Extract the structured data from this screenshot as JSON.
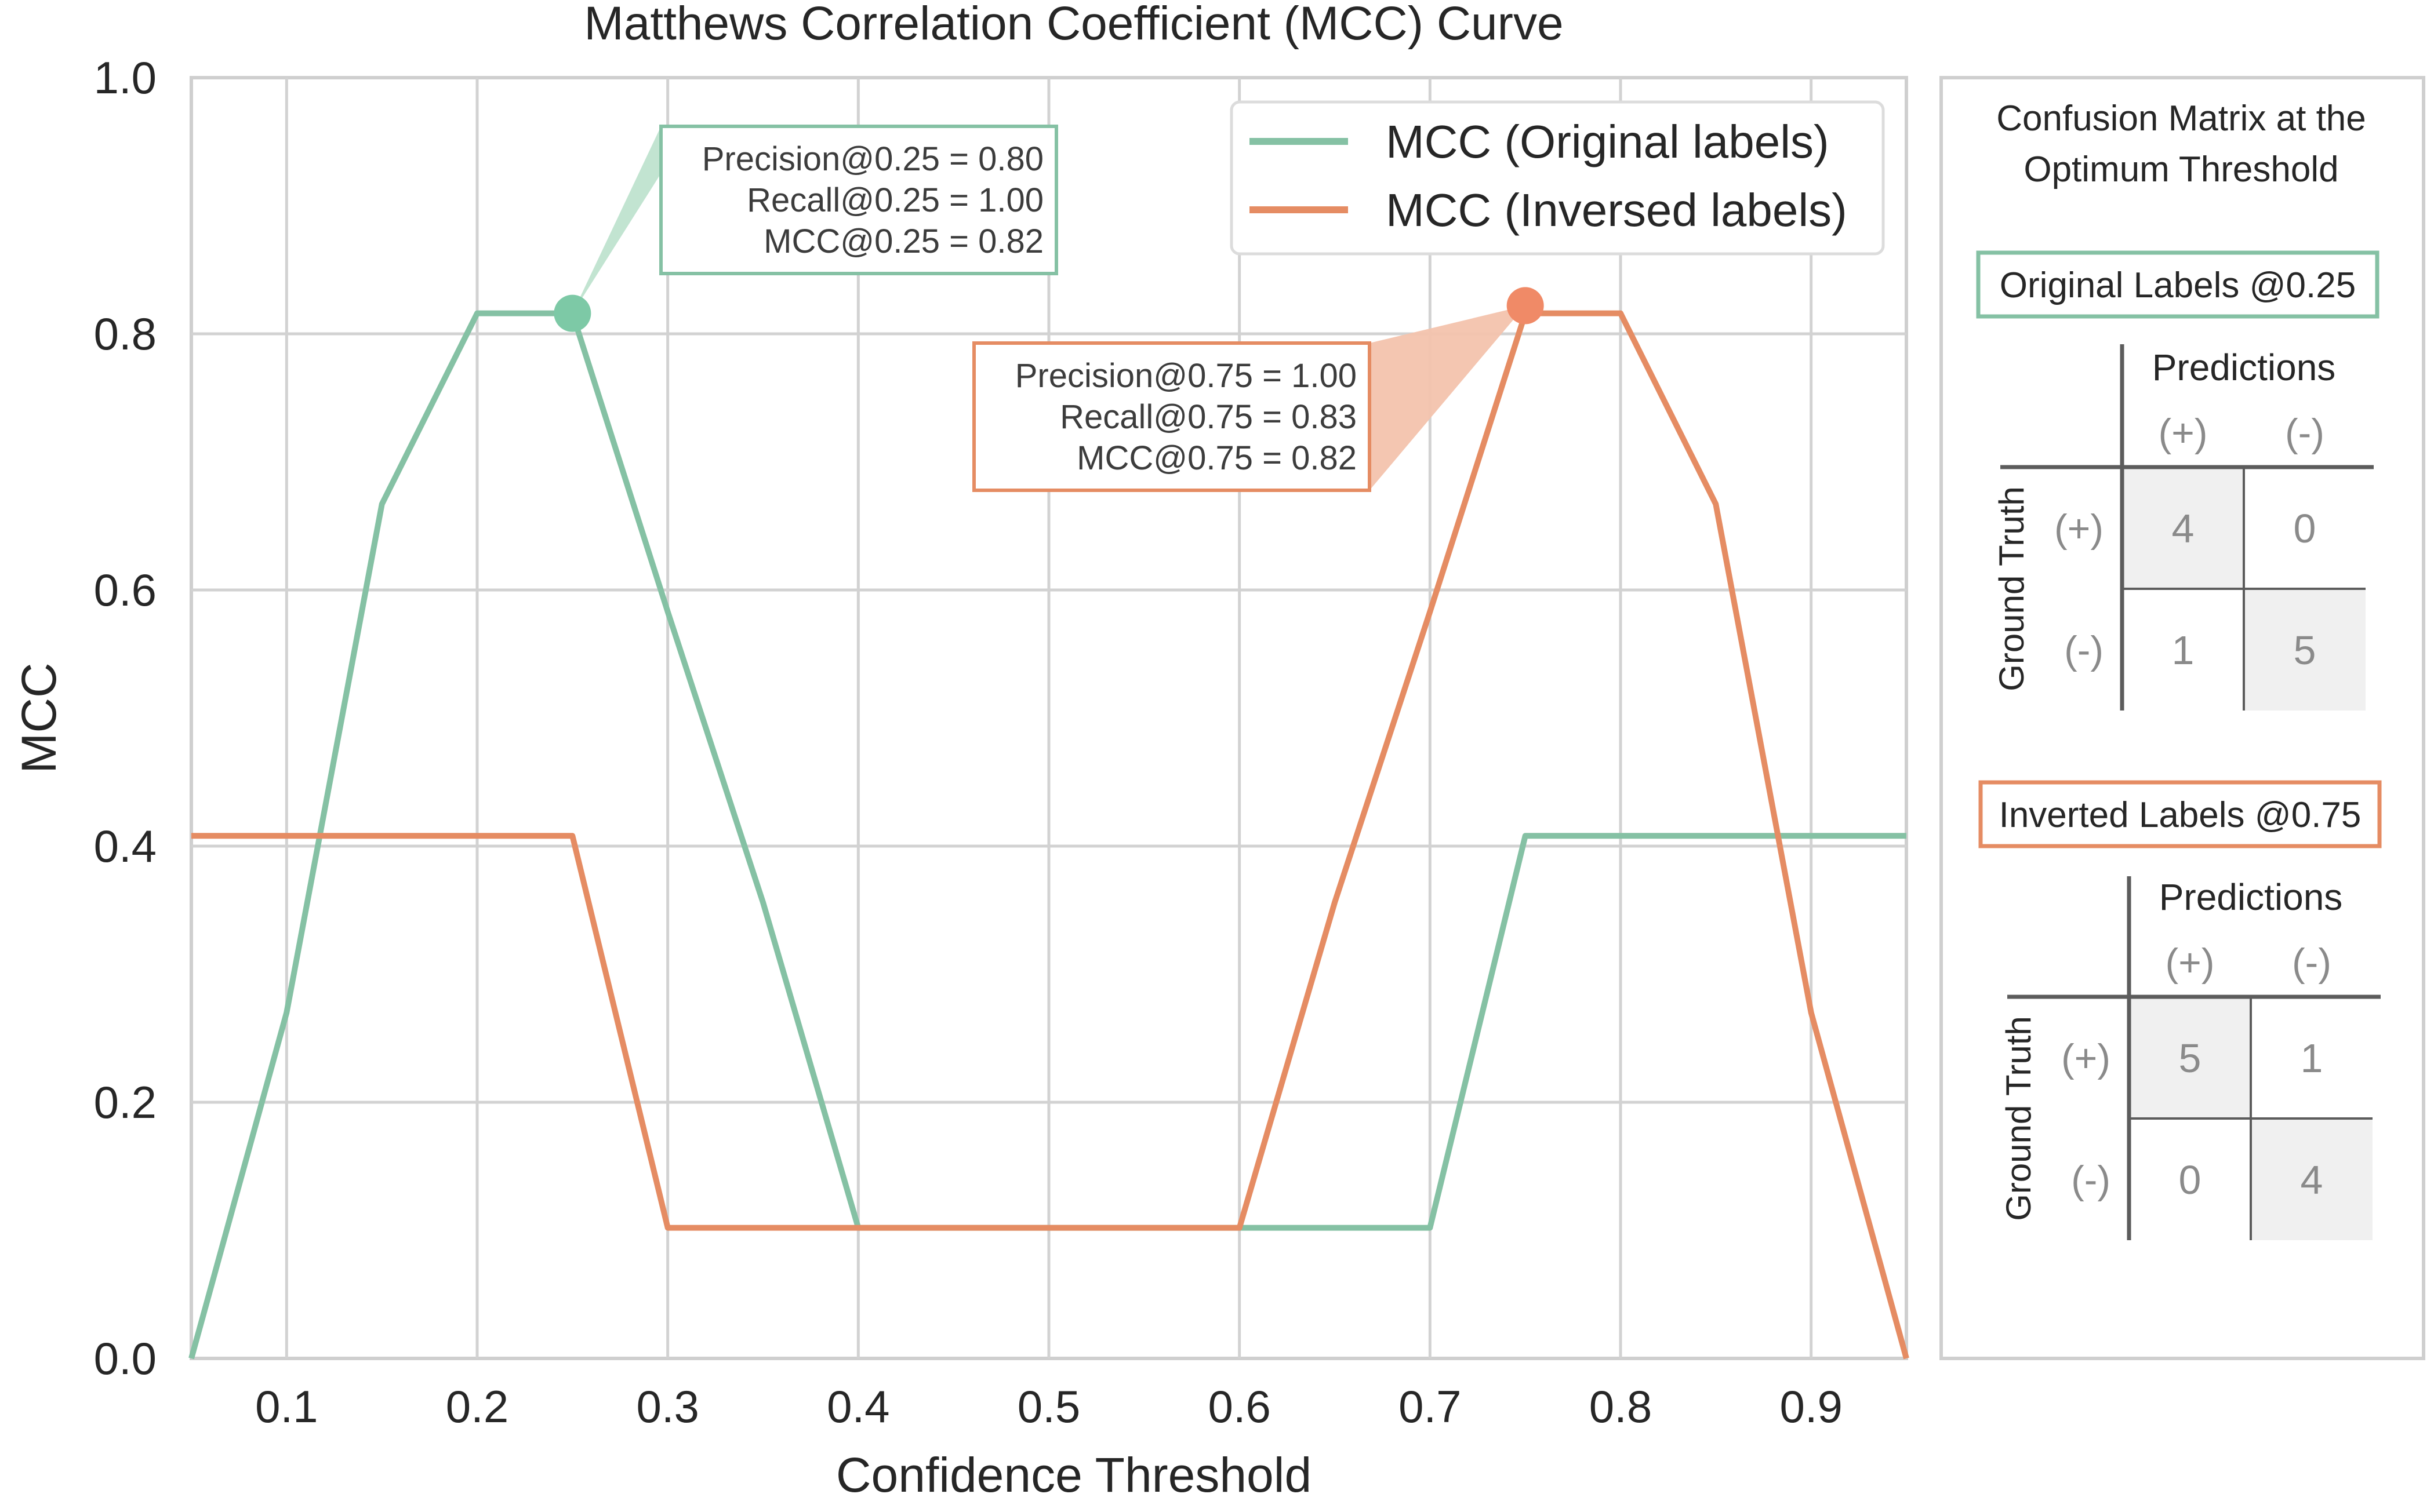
{
  "chart_data": {
    "type": "line",
    "title": "Matthews Correlation Coefficient (MCC) Curve",
    "xlabel": "Confidence Threshold",
    "ylabel": "MCC",
    "xlim": [
      0.05,
      0.95
    ],
    "ylim": [
      0.0,
      1.0
    ],
    "xticks": [
      0.1,
      0.2,
      0.3,
      0.4,
      0.5,
      0.6,
      0.7,
      0.8,
      0.9
    ],
    "xtick_labels": [
      "0.1",
      "0.2",
      "0.3",
      "0.4",
      "0.5",
      "0.6",
      "0.7",
      "0.8",
      "0.9"
    ],
    "yticks": [
      0.0,
      0.2,
      0.4,
      0.6,
      0.8,
      1.0
    ],
    "ytick_labels": [
      "0.0",
      "0.2",
      "0.4",
      "0.6",
      "0.8",
      "1.0"
    ],
    "grid": true,
    "legend_position": "top-right",
    "series": [
      {
        "name": "MCC (Original labels)",
        "color": "#85c1a4",
        "x": [
          0.05,
          0.1,
          0.15,
          0.2,
          0.25,
          0.3,
          0.35,
          0.4,
          0.45,
          0.5,
          0.55,
          0.6,
          0.65,
          0.7,
          0.75,
          0.8,
          0.85,
          0.9,
          0.95
        ],
        "y": [
          0.0,
          0.27,
          0.667,
          0.816,
          0.816,
          0.583,
          0.356,
          0.102,
          0.102,
          0.102,
          0.102,
          0.102,
          0.102,
          0.102,
          0.408,
          0.408,
          0.408,
          0.408,
          0.408
        ]
      },
      {
        "name": "MCC (Inversed labels)",
        "color": "#e58c63",
        "x": [
          0.05,
          0.1,
          0.15,
          0.2,
          0.25,
          0.3,
          0.35,
          0.4,
          0.45,
          0.5,
          0.55,
          0.6,
          0.65,
          0.7,
          0.75,
          0.8,
          0.85,
          0.9,
          0.95
        ],
        "y": [
          0.408,
          0.408,
          0.408,
          0.408,
          0.408,
          0.102,
          0.102,
          0.102,
          0.102,
          0.102,
          0.102,
          0.102,
          0.356,
          0.583,
          0.816,
          0.816,
          0.667,
          0.27,
          0.0
        ]
      }
    ],
    "annotations": [
      {
        "series": 0,
        "point": [
          0.25,
          0.816
        ],
        "lines": [
          "Precision@0.25 = 0.80",
          "Recall@0.25 = 1.00",
          "MCC@0.25 = 0.82"
        ]
      },
      {
        "series": 1,
        "point": [
          0.75,
          0.822
        ],
        "lines": [
          "Precision@0.75 = 1.00",
          "Recall@0.75 = 0.83",
          "MCC@0.75 = 0.82"
        ]
      }
    ]
  },
  "confusion_panel": {
    "title_lines": [
      "Confusion Matrix at the",
      "Optimum Threshold"
    ],
    "matrices": [
      {
        "label": "Original Labels @0.25",
        "color": "#85c1a4",
        "predictions_header": "Predictions",
        "ground_truth_header": "Ground Truth",
        "col_labels": [
          "(+)",
          "(-)"
        ],
        "row_labels": [
          "(+)",
          "(-)"
        ],
        "cells": [
          [
            "4",
            "0"
          ],
          [
            "1",
            "5"
          ]
        ]
      },
      {
        "label": "Inverted Labels @0.75",
        "color": "#e58c63",
        "predictions_header": "Predictions",
        "ground_truth_header": "Ground Truth",
        "col_labels": [
          "(+)",
          "(-)"
        ],
        "row_labels": [
          "(+)",
          "(-)"
        ],
        "cells": [
          [
            "5",
            "1"
          ],
          [
            "0",
            "4"
          ]
        ]
      }
    ]
  }
}
